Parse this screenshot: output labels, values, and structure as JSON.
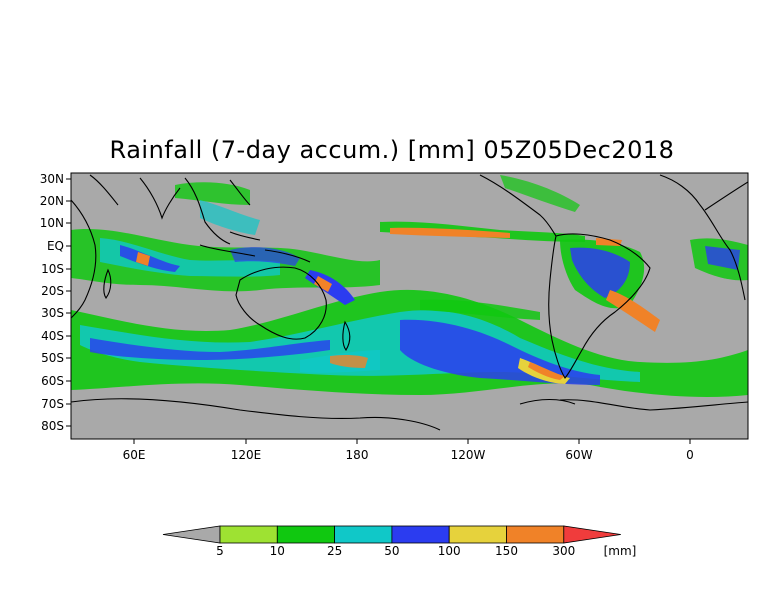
{
  "title": "Rainfall (7-day accum.) [mm] 05Z05Dec2018",
  "map": {
    "background_color": "#a9a9a9",
    "lat_labels": [
      "30N",
      "20N",
      "10N",
      "EQ",
      "10S",
      "20S",
      "30S",
      "40S",
      "50S",
      "60S",
      "70S",
      "80S"
    ],
    "lon_labels": [
      "60E",
      "120E",
      "180",
      "120W",
      "60W",
      "0"
    ]
  },
  "colorbar": {
    "thresholds": [
      "5",
      "10",
      "25",
      "50",
      "100",
      "150",
      "300"
    ],
    "unit": "[mm]",
    "colors": [
      "#a9a9a9",
      "#9ee232",
      "#10c810",
      "#10c8c8",
      "#2b3cf0",
      "#e6d23c",
      "#f08228",
      "#f03c3c"
    ]
  }
}
